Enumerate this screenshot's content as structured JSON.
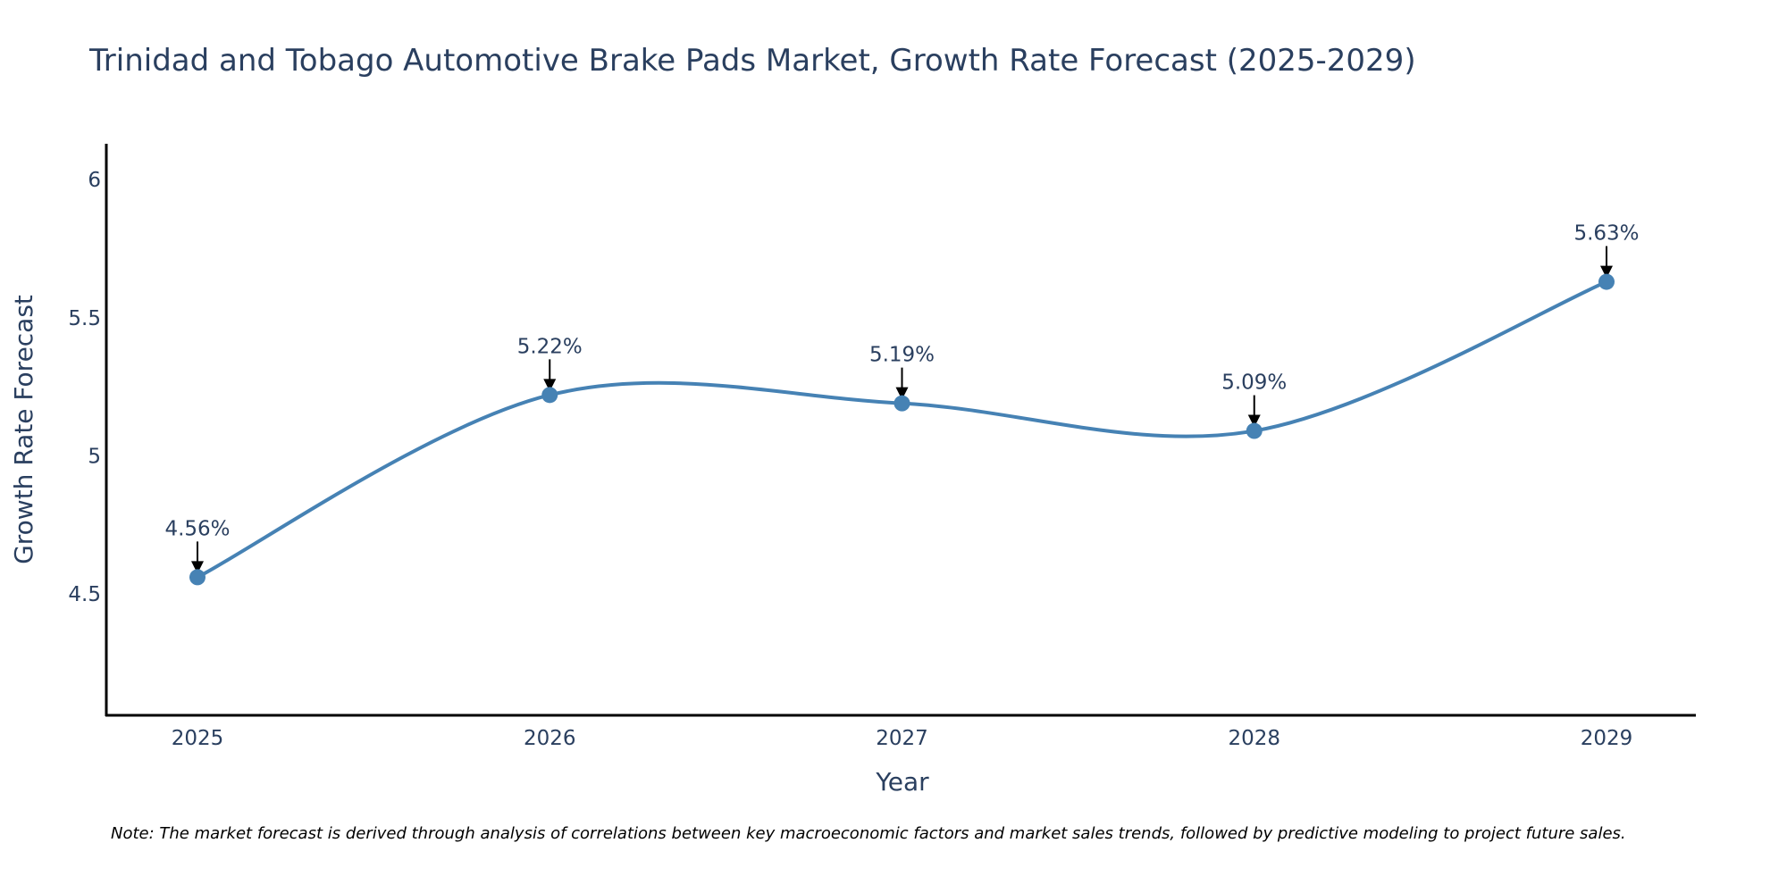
{
  "chart_data": {
    "type": "line",
    "title": "Trinidad and Tobago Automotive Brake Pads Market, Growth Rate Forecast (2025-2029)",
    "xlabel": "Year",
    "ylabel": "Growth Rate Forecast",
    "categories": [
      "2025",
      "2026",
      "2027",
      "2028",
      "2029"
    ],
    "series": [
      {
        "name": "Growth Rate Forecast",
        "values": [
          4.56,
          5.22,
          5.19,
          5.09,
          5.63
        ],
        "labels": [
          "4.56%",
          "5.22%",
          "5.19%",
          "5.09%",
          "5.63%"
        ],
        "color": "#4682b4"
      }
    ],
    "ylim": [
      4.06,
      6.13
    ],
    "yticks": [
      4.5,
      5,
      5.5,
      6
    ],
    "ytick_labels": [
      "4.5",
      "5",
      "5.5",
      "6"
    ],
    "line_shape": "spline",
    "grid": false,
    "note": "Note: The market forecast is derived through analysis of correlations between key macroeconomic factors and market sales trends, followed by predictive modeling to project future sales."
  }
}
